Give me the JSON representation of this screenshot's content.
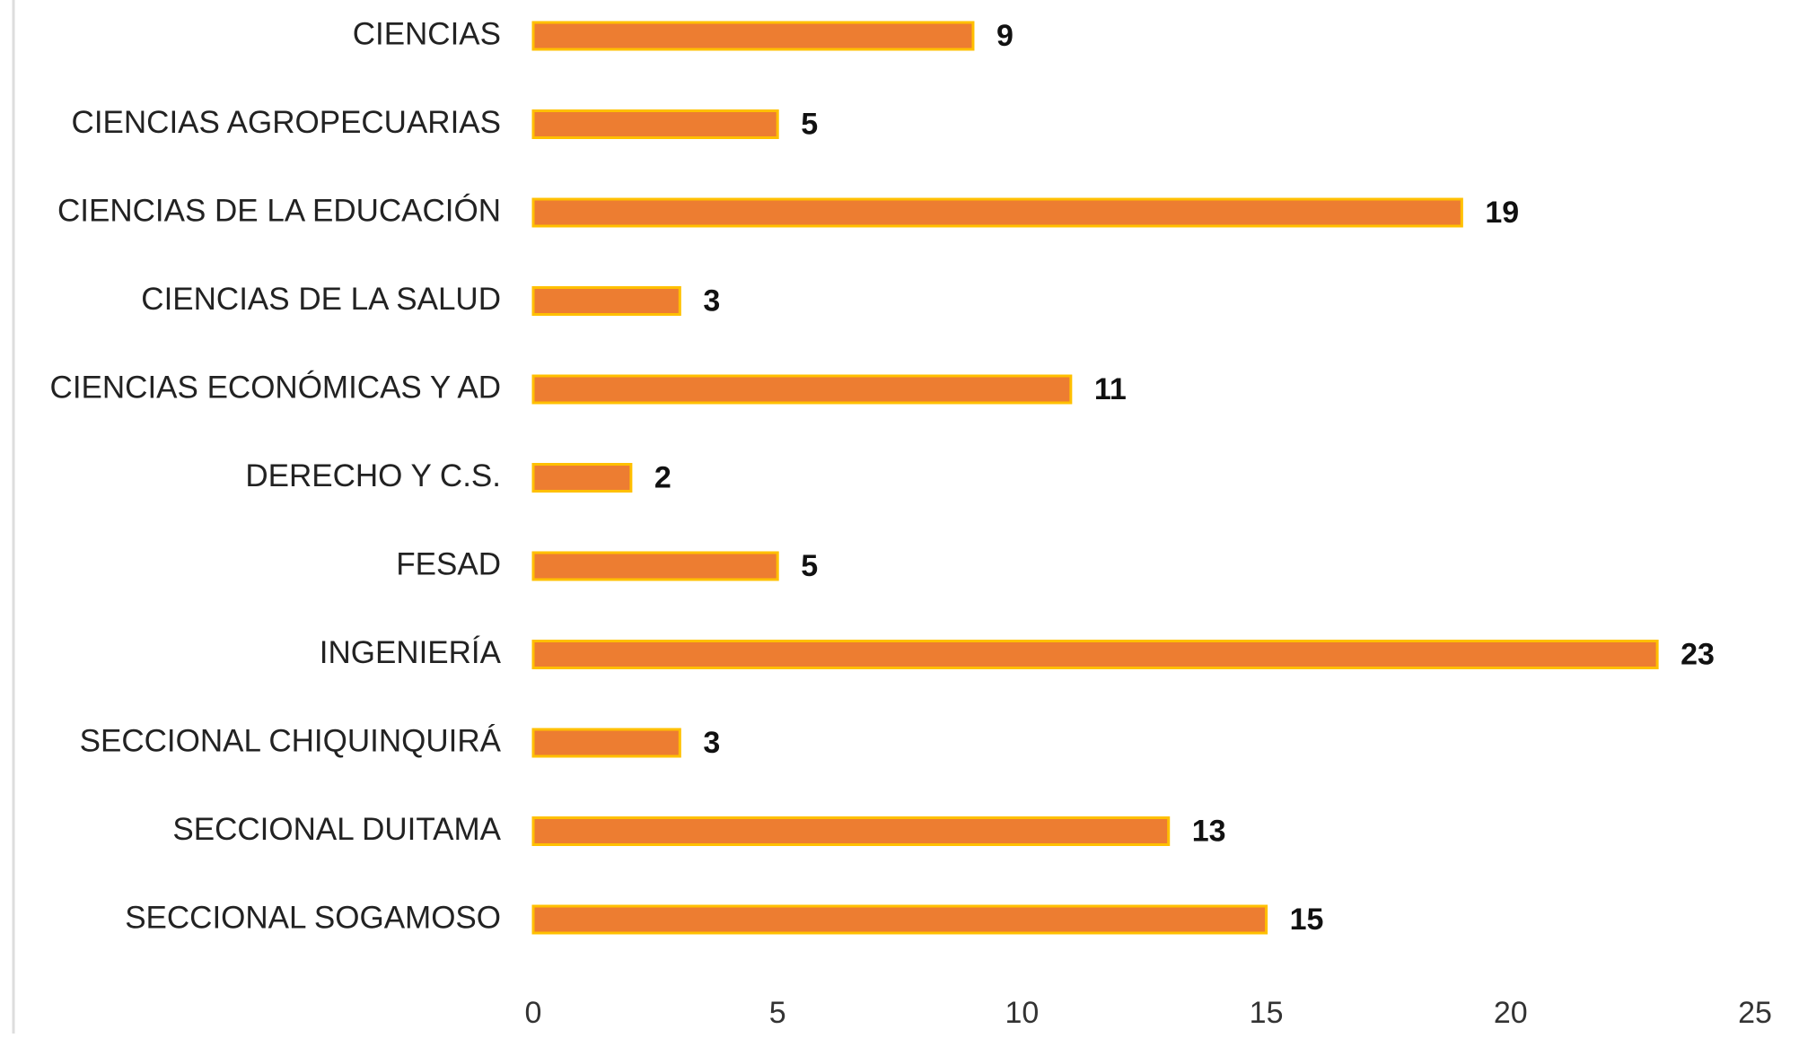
{
  "chart_data": {
    "type": "bar",
    "orientation": "horizontal",
    "categories": [
      "CIENCIAS",
      "CIENCIAS AGROPECUARIAS",
      "CIENCIAS DE LA EDUCACIÓN",
      "CIENCIAS DE LA SALUD",
      "CIENCIAS ECONÓMICAS Y AD",
      "DERECHO Y C.S.",
      "FESAD",
      "INGENIERÍA",
      "SECCIONAL CHIQUINQUIRÁ",
      "SECCIONAL DUITAMA",
      "SECCIONAL SOGAMOSO"
    ],
    "values": [
      9,
      5,
      19,
      3,
      11,
      2,
      5,
      23,
      3,
      13,
      15
    ],
    "color": "#ed7d31",
    "edge_color": "#ffc000",
    "xlim": [
      0,
      25
    ],
    "xticks": [
      0,
      5,
      10,
      15,
      20,
      25
    ],
    "grid": false
  }
}
